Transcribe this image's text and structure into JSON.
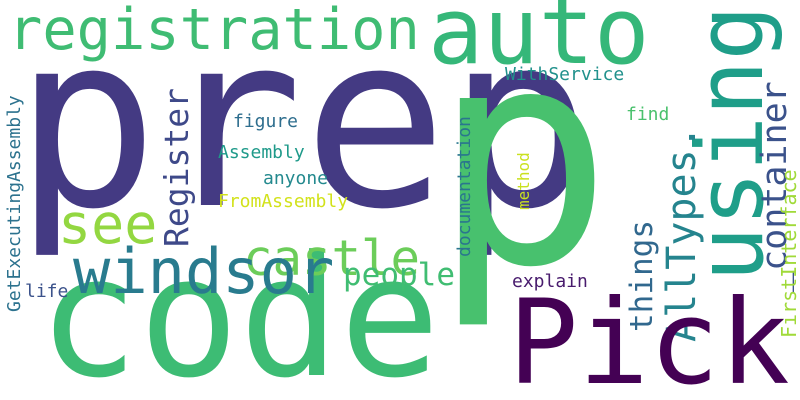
{
  "words": [
    "prep",
    "p",
    "registration",
    "auto",
    "using",
    "_container",
    "AllTypes.",
    "FirstInterface",
    "WithService",
    "find",
    "method",
    "explain",
    "Pick",
    "code",
    "castle",
    "people",
    "windsor",
    "see",
    "Register",
    "figure",
    "Assembly",
    "anyone",
    "FromAssembly",
    "things",
    "documentation",
    "GetExecutingAssembly",
    "life"
  ]
}
